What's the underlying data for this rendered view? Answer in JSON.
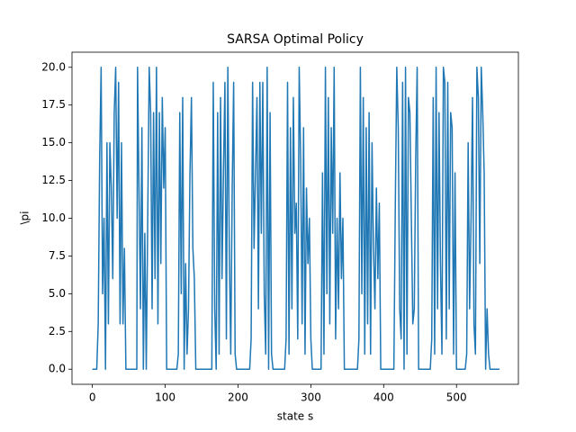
{
  "chart_data": {
    "type": "line",
    "title": "SARSA Optimal Policy",
    "x_label": "state s",
    "y_label": "\\pi",
    "x": [
      0,
      6,
      8,
      10,
      12,
      14,
      16,
      18,
      20,
      22,
      24,
      26,
      28,
      30,
      32,
      34,
      36,
      38,
      40,
      42,
      44,
      46,
      61,
      62,
      64,
      66,
      68,
      70,
      72,
      74,
      76,
      78,
      80,
      82,
      84,
      86,
      88,
      90,
      92,
      94,
      96,
      98,
      100,
      102,
      116,
      118,
      120,
      122,
      124,
      126,
      128,
      130,
      132,
      134,
      136,
      138,
      140,
      142,
      164,
      166,
      168,
      170,
      172,
      174,
      176,
      178,
      180,
      182,
      184,
      186,
      188,
      190,
      192,
      194,
      196,
      198,
      216,
      218,
      220,
      222,
      224,
      226,
      228,
      230,
      232,
      234,
      236,
      238,
      240,
      242,
      244,
      246,
      248,
      264,
      266,
      268,
      270,
      272,
      274,
      276,
      278,
      280,
      282,
      284,
      286,
      288,
      290,
      292,
      294,
      296,
      298,
      300,
      302,
      314,
      316,
      318,
      320,
      322,
      324,
      326,
      328,
      330,
      332,
      334,
      336,
      338,
      340,
      342,
      344,
      346,
      348,
      364,
      366,
      368,
      370,
      372,
      374,
      376,
      378,
      380,
      382,
      384,
      386,
      388,
      390,
      392,
      394,
      396,
      398,
      414,
      416,
      418,
      420,
      422,
      424,
      426,
      428,
      430,
      432,
      434,
      436,
      438,
      440,
      442,
      444,
      446,
      448,
      450,
      464,
      466,
      468,
      470,
      472,
      474,
      476,
      478,
      480,
      482,
      484,
      486,
      488,
      490,
      492,
      494,
      496,
      498,
      500,
      502,
      512,
      514,
      516,
      518,
      520,
      522,
      524,
      526,
      528,
      530,
      532,
      534,
      536,
      538,
      540,
      542,
      544,
      546,
      548,
      559
    ],
    "series": [
      {
        "name": "policy",
        "color": "#1f77b4",
        "values": [
          0,
          0,
          3,
          14,
          20,
          5,
          10,
          0,
          15,
          3,
          15,
          12,
          6,
          17,
          20,
          10,
          19,
          3,
          15,
          3,
          8,
          0,
          0,
          20,
          12,
          4,
          16,
          0,
          9,
          0,
          10,
          20,
          17,
          4,
          17,
          6,
          20,
          3,
          17,
          7,
          18,
          12,
          16,
          0,
          0,
          1,
          17,
          5,
          18,
          0,
          7,
          1,
          4,
          13,
          18,
          8,
          6,
          0,
          0,
          19,
          4,
          0,
          17,
          1,
          18,
          6,
          13,
          19,
          2,
          20,
          8,
          1,
          12,
          19,
          1,
          0,
          0,
          2,
          19,
          8,
          13,
          18,
          4,
          19,
          9,
          19,
          5,
          1,
          20,
          0,
          17,
          1,
          0,
          0,
          2,
          19,
          1,
          16,
          4,
          18,
          9,
          11,
          2,
          20,
          14,
          3,
          16,
          1,
          12,
          7,
          10,
          2,
          0,
          0,
          13,
          1,
          20,
          5,
          18,
          3,
          16,
          9,
          20,
          2,
          10,
          4,
          13,
          6,
          10,
          0,
          0,
          0,
          2,
          20,
          5,
          18,
          1,
          16,
          3,
          17,
          1,
          15,
          8,
          4,
          12,
          6,
          11,
          0,
          0,
          0,
          11,
          20,
          16,
          4,
          2,
          19,
          0,
          20,
          1,
          18,
          17,
          10,
          3,
          4,
          14,
          20,
          0,
          0,
          0,
          2,
          18,
          1,
          20,
          4,
          17,
          7,
          1,
          20,
          19,
          2,
          19,
          4,
          17,
          16,
          1,
          13,
          0,
          0,
          0,
          1,
          15,
          4,
          10,
          18,
          3,
          1,
          20,
          18,
          7,
          20,
          17,
          13,
          0,
          4,
          1,
          0,
          0,
          0
        ]
      }
    ],
    "xlim": [
      -28,
      585
    ],
    "xticks": [
      0,
      100,
      200,
      300,
      400,
      500
    ],
    "ylim": [
      -1,
      21
    ],
    "yticks": [
      {
        "value": 0,
        "label": "0.0"
      },
      2.5,
      {
        "value": 5,
        "label": "5.0"
      },
      7.5,
      {
        "value": 10,
        "label": "10.0"
      },
      12.5,
      {
        "value": 15,
        "label": "15.0"
      },
      17.5,
      {
        "value": 20,
        "label": "20.0"
      }
    ]
  }
}
